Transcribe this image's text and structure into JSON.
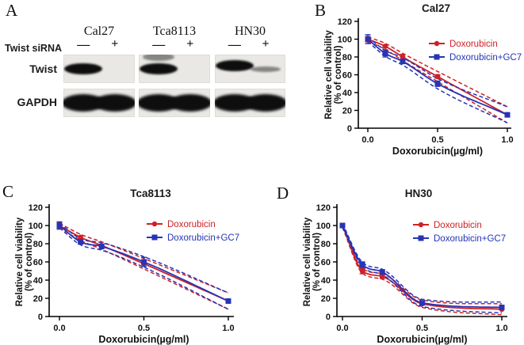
{
  "panel_a": {
    "label": "A",
    "row_label": "Twist siRNA",
    "minus_symbol": "—",
    "plus_symbol": "+",
    "blot_rows": [
      "Twist",
      "GAPDH"
    ],
    "groups": [
      {
        "name": "Cal27",
        "twist_lanes": [
          1,
          0
        ],
        "twist_upper_band": 0,
        "gapdh_lanes": [
          1,
          1
        ]
      },
      {
        "name": "Tca8113",
        "twist_lanes": [
          1,
          0
        ],
        "twist_upper_band": 0.45,
        "gapdh_lanes": [
          1,
          1
        ]
      },
      {
        "name": "HN30",
        "twist_lanes": [
          1,
          0.4
        ],
        "twist_upper_band": 0,
        "gapdh_lanes": [
          1,
          1
        ]
      }
    ]
  },
  "chart_data": [
    {
      "panel": "B",
      "type": "line",
      "title": "Cal27",
      "xlabel": "Doxorubicin(µg/ml)",
      "ylabel": [
        "Relative cell viability",
        "(% of control)"
      ],
      "xlim": [
        0,
        1.0
      ],
      "ylim": [
        0,
        120
      ],
      "xticks": [
        0.0,
        0.5,
        1.0
      ],
      "yticks": [
        0,
        20,
        40,
        60,
        80,
        100,
        120
      ],
      "grid": false,
      "legend_position": "top-right",
      "fit_confidence_bands": true,
      "x": [
        0,
        0.125,
        0.25,
        0.5,
        1.0
      ],
      "series": [
        {
          "name": "Doxorubicin",
          "color": "#ce2127",
          "marker": "circle",
          "values": [
            100,
            92,
            80,
            58,
            15
          ],
          "errors": [
            3,
            0,
            3,
            2,
            0
          ]
        },
        {
          "name": "Doxorubicin+GC7",
          "color": "#2634b5",
          "marker": "square",
          "values": [
            100,
            84,
            75,
            50,
            15
          ],
          "errors": [
            5,
            4,
            0,
            3,
            0
          ]
        }
      ]
    },
    {
      "panel": "C",
      "type": "line",
      "title": "Tca8113",
      "xlabel": "Doxorubicin(µg/ml)",
      "ylabel": [
        "Relative cell viability",
        "(% of control)"
      ],
      "xlim": [
        0,
        1.0
      ],
      "ylim": [
        0,
        120
      ],
      "xticks": [
        0.0,
        0.5,
        1.0
      ],
      "yticks": [
        0,
        20,
        40,
        60,
        80,
        100,
        120
      ],
      "grid": false,
      "legend_position": "top-right",
      "fit_confidence_bands": true,
      "x": [
        0,
        0.125,
        0.25,
        0.5,
        1.0
      ],
      "series": [
        {
          "name": "Doxorubicin",
          "color": "#ce2127",
          "marker": "circle",
          "values": [
            100,
            87,
            78,
            58,
            17
          ],
          "errors": [
            3,
            0,
            0,
            0,
            0
          ]
        },
        {
          "name": "Doxorubicin+GC7",
          "color": "#2634b5",
          "marker": "square",
          "values": [
            100,
            82,
            77,
            60,
            17
          ],
          "errors": [
            4,
            2,
            0,
            5,
            2
          ]
        }
      ]
    },
    {
      "panel": "D",
      "type": "line",
      "title": "HN30",
      "xlabel": "Doxorubicin(µg/ml)",
      "ylabel": [
        "Relative cell viability",
        "(% of control)"
      ],
      "xlim": [
        0,
        1.0
      ],
      "ylim": [
        0,
        120
      ],
      "xticks": [
        0.0,
        0.5,
        1.0
      ],
      "yticks": [
        0,
        20,
        40,
        60,
        80,
        100,
        120
      ],
      "grid": false,
      "legend_position": "top-right",
      "fit_confidence_bands": true,
      "x": [
        0,
        0.125,
        0.25,
        0.5,
        1.0
      ],
      "series": [
        {
          "name": "Doxorubicin",
          "color": "#ce2127",
          "marker": "circle",
          "values": [
            100,
            50,
            44,
            14,
            8
          ],
          "errors": [
            0,
            3,
            2,
            0,
            0
          ]
        },
        {
          "name": "Doxorubicin+GC7",
          "color": "#2634b5",
          "marker": "square",
          "values": [
            100,
            57,
            49,
            15,
            10
          ],
          "errors": [
            0,
            3,
            2,
            2,
            2
          ]
        }
      ]
    }
  ]
}
